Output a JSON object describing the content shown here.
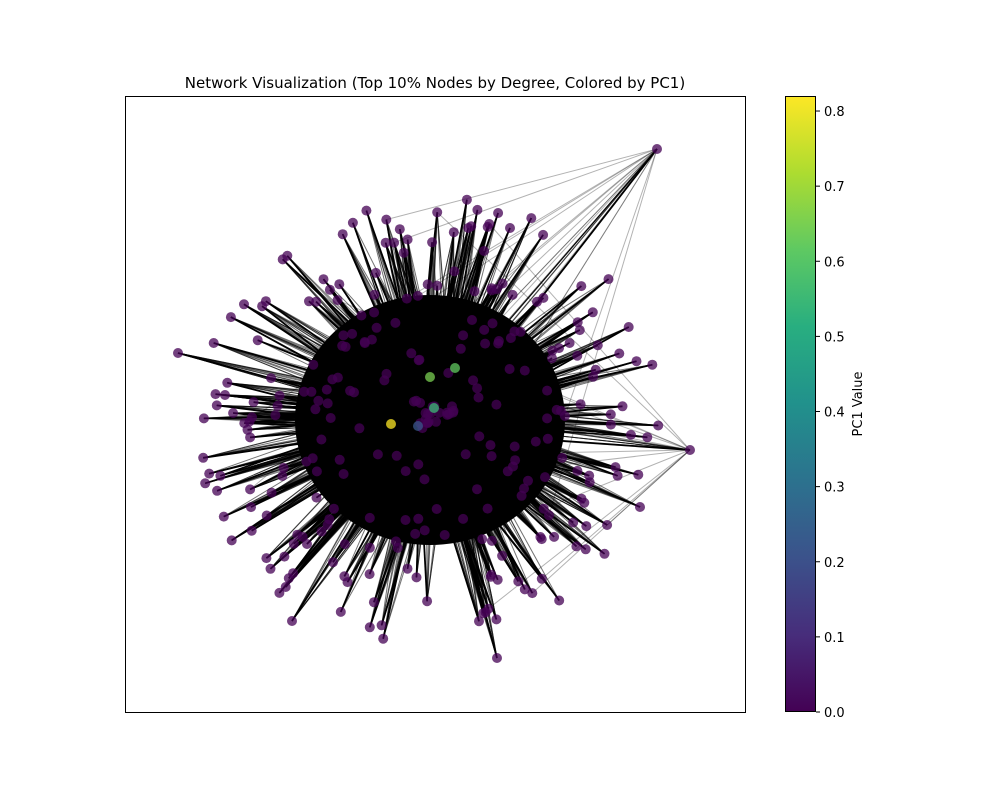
{
  "chart_data": {
    "type": "network",
    "title": "Network Visualization (Top 10% Nodes by Degree, Colored by PC1)",
    "colormap": "viridis",
    "node_color_default": "#440154",
    "edge_color": "#000000",
    "colorbar": {
      "label": "PC1 Value",
      "range": [
        0.0,
        0.82
      ],
      "ticks": [
        0.0,
        0.1,
        0.2,
        0.3,
        0.4,
        0.5,
        0.6,
        0.7,
        0.8
      ],
      "tick_labels": [
        "0.0",
        "0.1",
        "0.2",
        "0.3",
        "0.4",
        "0.5",
        "0.6",
        "0.7",
        "0.8"
      ]
    },
    "axes": {
      "xticks": false,
      "yticks": false,
      "grid": false
    },
    "highlighted_nodes": [
      {
        "id": "n_yellow",
        "pc1": 0.82
      },
      {
        "id": "n_green_1",
        "pc1": 0.65
      },
      {
        "id": "n_green_2",
        "pc1": 0.62
      },
      {
        "id": "n_teal",
        "pc1": 0.55
      },
      {
        "id": "n_blue",
        "pc1": 0.22
      }
    ]
  }
}
